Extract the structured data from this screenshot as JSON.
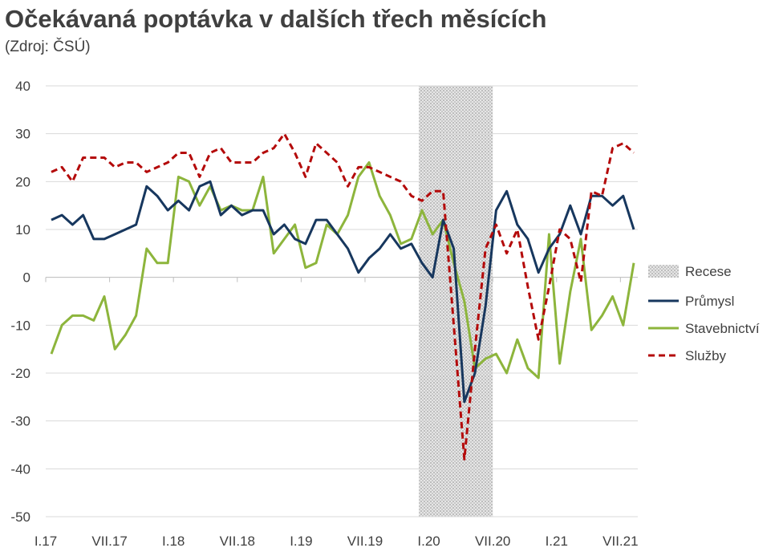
{
  "chart_data": {
    "type": "line",
    "title": "Očekávaná poptávka v dalších třech měsících",
    "subtitle": "(Zdroj: ČSÚ)",
    "xlabel": "",
    "ylabel": "",
    "ylim": [
      -50,
      40
    ],
    "yticks": [
      40,
      30,
      20,
      10,
      0,
      -10,
      -20,
      -30,
      -40,
      -50
    ],
    "x_start": "2017-01",
    "x_frequency": "monthly",
    "xtick_labels": [
      "I.17",
      "VII.17",
      "I.18",
      "VII.18",
      "I.19",
      "VII.19",
      "I.20",
      "VII.20",
      "I.21",
      "VII.21"
    ],
    "grid": true,
    "legend_placement": "right",
    "recession": {
      "name": "Recese",
      "start": "2019-12",
      "end": "2020-06",
      "color": "#d0d0d0"
    },
    "series": [
      {
        "name": "Průmysl",
        "color": "#17375e",
        "style": "solid",
        "values": [
          12,
          13,
          11,
          13,
          8,
          8,
          9,
          10,
          11,
          19,
          17,
          14,
          16,
          14,
          19,
          20,
          13,
          15,
          13,
          14,
          14,
          9,
          11,
          8,
          7,
          12,
          12,
          9,
          6,
          1,
          4,
          6,
          9,
          6,
          7,
          3,
          0,
          12,
          6,
          -26,
          -20,
          -6,
          14,
          18,
          11,
          8,
          1,
          6,
          9,
          15,
          9,
          17,
          17,
          15,
          17,
          10
        ]
      },
      {
        "name": "Stavebnictví",
        "color": "#8db53c",
        "style": "solid",
        "values": [
          -16,
          -10,
          -8,
          -8,
          -9,
          -4,
          -15,
          -12,
          -8,
          6,
          3,
          3,
          21,
          20,
          15,
          19,
          14,
          15,
          14,
          14,
          21,
          5,
          8,
          11,
          2,
          3,
          11,
          9,
          13,
          21,
          24,
          17,
          13,
          7,
          8,
          14,
          9,
          12,
          3,
          -5,
          -19,
          -17,
          -16,
          -20,
          -13,
          -19,
          -21,
          9,
          -18,
          -3,
          8,
          -11,
          -8,
          -4,
          -10,
          3
        ]
      },
      {
        "name": "Služby",
        "color": "#b40a0a",
        "style": "dashed",
        "values": [
          22,
          23,
          20,
          25,
          25,
          25,
          23,
          24,
          24,
          22,
          23,
          24,
          26,
          26,
          21,
          26,
          27,
          24,
          24,
          24,
          26,
          27,
          30,
          26,
          21,
          28,
          26,
          24,
          19,
          23,
          23,
          22,
          21,
          20,
          17,
          16,
          18,
          18,
          -10,
          -38,
          -15,
          6,
          11,
          5,
          10,
          -2,
          -13,
          -2,
          10,
          8,
          -1,
          18,
          17,
          27,
          28,
          26
        ]
      }
    ]
  }
}
